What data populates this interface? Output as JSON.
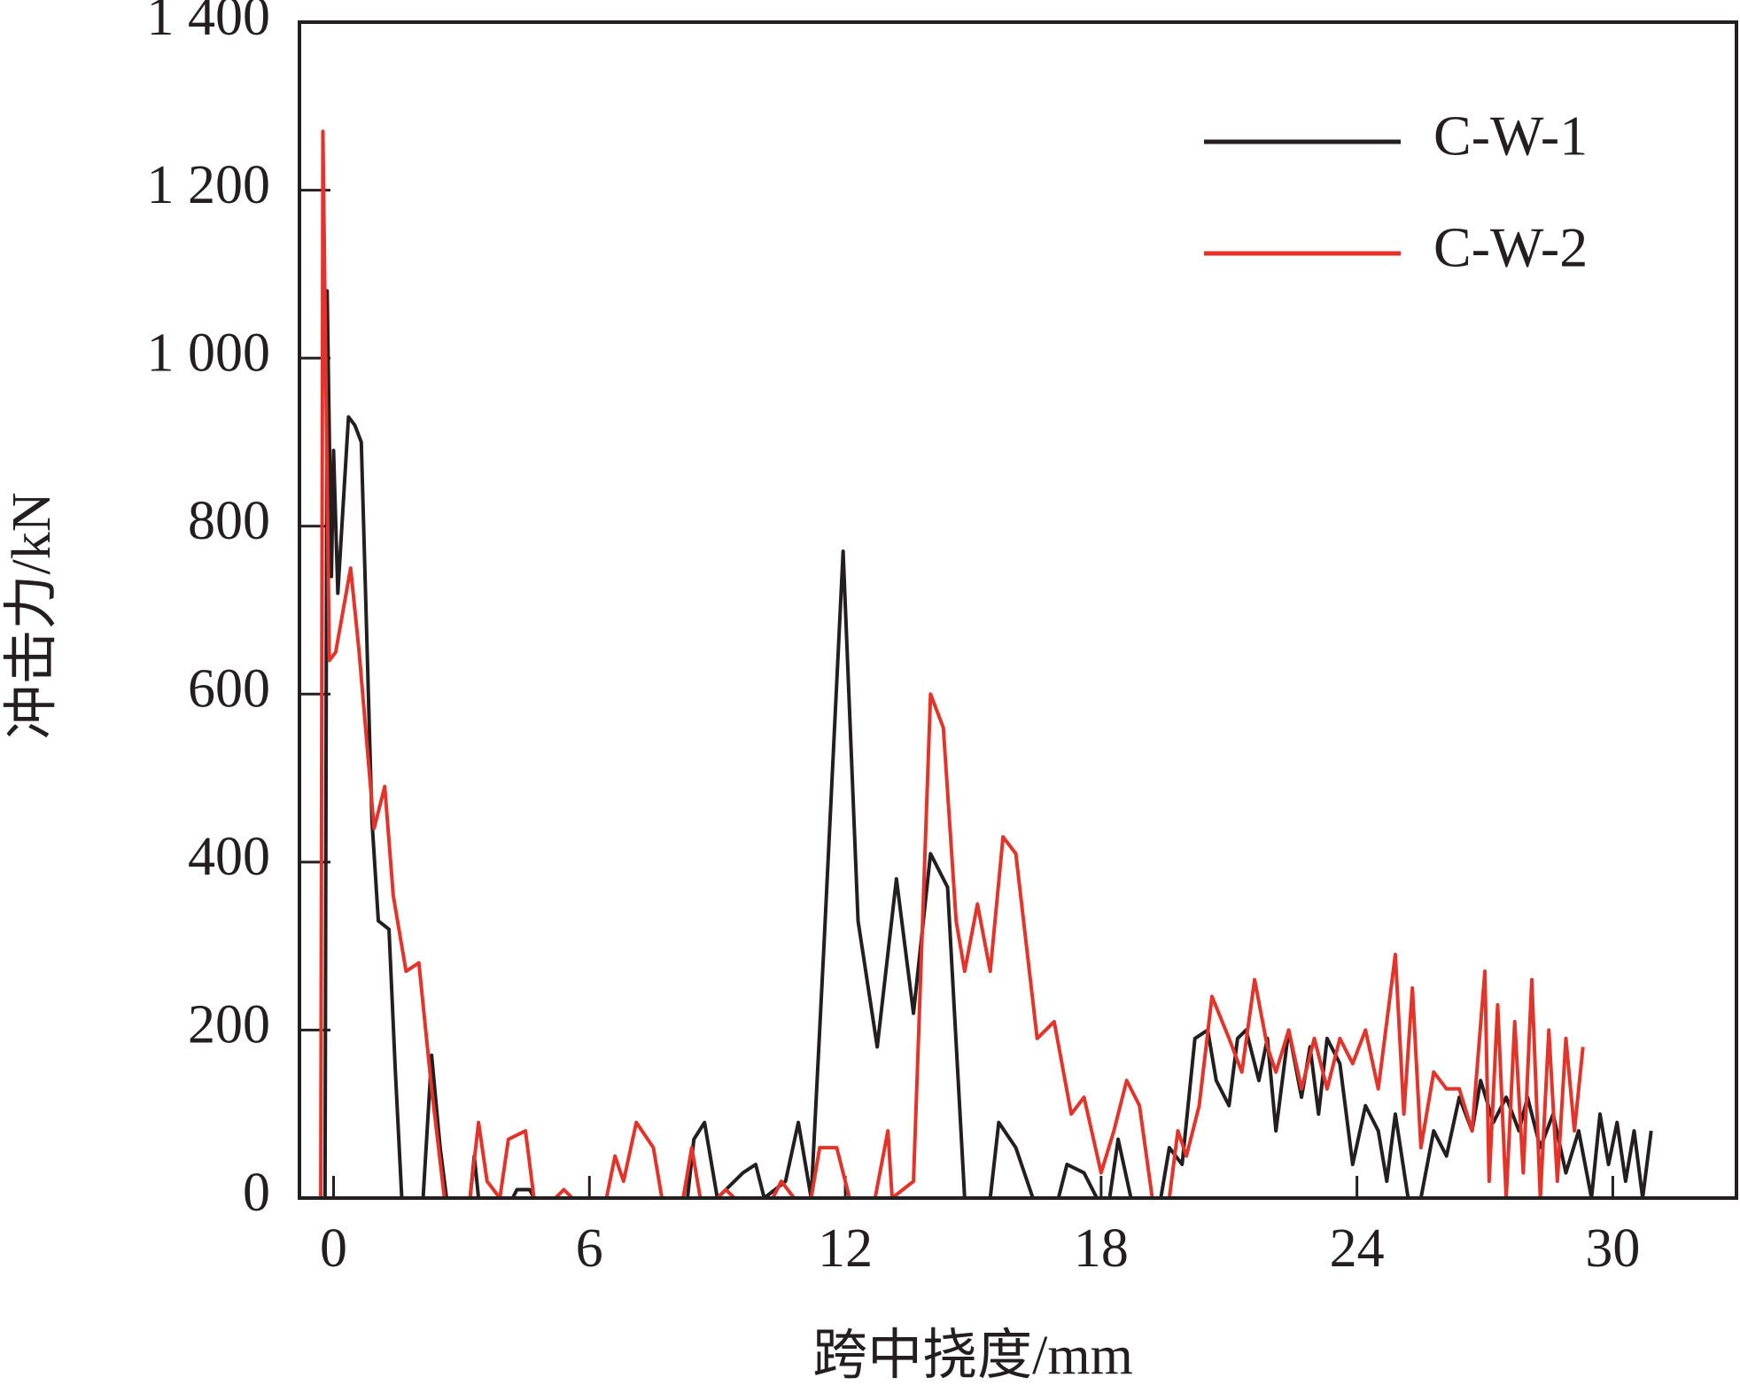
{
  "chart_data": {
    "type": "line",
    "xlabel": "跨中挠度/mm",
    "ylabel": "冲击力/kN",
    "xlim": [
      -0.8,
      32.9
    ],
    "ylim": [
      0,
      1400
    ],
    "xticks": [
      0,
      6,
      12,
      18,
      24,
      30
    ],
    "yticks": [
      0,
      200,
      400,
      600,
      800,
      {
        "value": 1000,
        "label": "1 000"
      },
      {
        "value": 1200,
        "label": "1 200"
      },
      {
        "value": 1400,
        "label": "1 400"
      }
    ],
    "grid": false,
    "legend": "upper right",
    "series": [
      {
        "name": "C-W-1",
        "color": "#231f20",
        "x": [
          -0.2,
          -0.15,
          -0.05,
          0.0,
          0.1,
          0.35,
          0.5,
          0.65,
          0.9,
          1.05,
          1.3,
          1.45,
          1.6,
          2.1,
          2.3,
          2.5,
          2.65,
          3.2,
          3.3,
          3.4,
          4.2,
          4.3,
          4.6,
          4.7,
          8.3,
          8.45,
          8.7,
          9.0,
          9.6,
          9.9,
          10.1,
          10.6,
          10.9,
          11.2,
          11.5,
          11.95,
          12.3,
          12.75,
          13.2,
          13.6,
          14.0,
          14.4,
          14.8,
          15.4,
          15.6,
          16.0,
          16.4,
          17.0,
          17.2,
          17.6,
          17.9,
          18.2,
          18.4,
          18.7,
          19.4,
          19.6,
          19.9,
          20.2,
          20.5,
          20.7,
          21.0,
          21.2,
          21.4,
          21.7,
          21.9,
          22.1,
          22.4,
          22.7,
          22.9,
          23.1,
          23.3,
          23.6,
          23.9,
          24.2,
          24.5,
          24.7,
          24.9,
          25.2,
          25.5,
          25.8,
          26.1,
          26.4,
          26.7,
          26.9,
          27.2,
          27.5,
          27.8,
          28.0,
          28.3,
          28.6,
          28.9,
          29.2,
          29.5,
          29.7,
          29.9,
          30.1,
          30.3,
          30.5,
          30.7,
          30.9
        ],
        "values": [
          0,
          1080,
          740,
          890,
          720,
          930,
          920,
          900,
          450,
          330,
          320,
          150,
          0,
          0,
          170,
          60,
          0,
          0,
          50,
          0,
          0,
          10,
          10,
          0,
          0,
          70,
          90,
          0,
          30,
          40,
          0,
          20,
          90,
          0,
          300,
          770,
          330,
          180,
          380,
          220,
          410,
          370,
          0,
          0,
          90,
          60,
          0,
          0,
          40,
          30,
          0,
          0,
          70,
          0,
          0,
          60,
          40,
          190,
          200,
          140,
          110,
          190,
          200,
          140,
          190,
          80,
          200,
          120,
          180,
          100,
          190,
          160,
          40,
          110,
          80,
          20,
          100,
          0,
          0,
          80,
          50,
          120,
          80,
          140,
          90,
          120,
          80,
          120,
          60,
          100,
          30,
          80,
          0,
          100,
          40,
          90,
          20,
          80,
          0,
          80
        ]
      },
      {
        "name": "C-W-2",
        "color": "#e5332a",
        "x": [
          -0.3,
          -0.25,
          -0.1,
          0.05,
          0.4,
          0.6,
          0.95,
          1.2,
          1.4,
          1.7,
          2.0,
          2.3,
          2.6,
          3.2,
          3.4,
          3.6,
          3.9,
          4.1,
          4.5,
          4.7,
          5.2,
          5.4,
          5.6,
          6.4,
          6.6,
          6.8,
          7.1,
          7.5,
          7.7,
          8.2,
          8.4,
          8.6,
          9.0,
          9.2,
          9.4,
          10.3,
          10.5,
          10.8,
          11.2,
          11.4,
          11.8,
          12.1,
          12.7,
          13.0,
          13.1,
          13.6,
          14.0,
          14.3,
          14.6,
          14.8,
          15.1,
          15.4,
          15.7,
          16.0,
          16.5,
          16.9,
          17.3,
          17.6,
          18.0,
          18.3,
          18.6,
          18.9,
          19.2,
          19.6,
          19.8,
          20.0,
          20.3,
          20.6,
          21.0,
          21.3,
          21.6,
          21.9,
          22.1,
          22.4,
          22.7,
          23.0,
          23.3,
          23.6,
          23.9,
          24.2,
          24.5,
          24.9,
          25.1,
          25.3,
          25.5,
          25.8,
          26.1,
          26.4,
          26.7,
          27.0,
          27.1,
          27.3,
          27.5,
          27.7,
          27.9,
          28.1,
          28.3,
          28.5,
          28.7,
          28.9,
          29.1,
          29.3
        ],
        "values": [
          0,
          1270,
          640,
          650,
          750,
          650,
          440,
          490,
          360,
          270,
          280,
          130,
          0,
          0,
          90,
          20,
          0,
          70,
          80,
          0,
          0,
          10,
          0,
          0,
          50,
          20,
          90,
          60,
          0,
          0,
          60,
          0,
          0,
          10,
          0,
          0,
          20,
          0,
          0,
          60,
          60,
          0,
          0,
          80,
          0,
          20,
          600,
          560,
          330,
          270,
          350,
          270,
          430,
          410,
          190,
          210,
          100,
          120,
          30,
          80,
          140,
          110,
          0,
          0,
          80,
          50,
          110,
          240,
          190,
          150,
          260,
          180,
          150,
          200,
          130,
          190,
          130,
          190,
          160,
          200,
          130,
          290,
          100,
          250,
          60,
          150,
          130,
          130,
          80,
          270,
          20,
          230,
          0,
          210,
          30,
          260,
          0,
          200,
          20,
          190,
          80,
          180
        ]
      }
    ]
  }
}
